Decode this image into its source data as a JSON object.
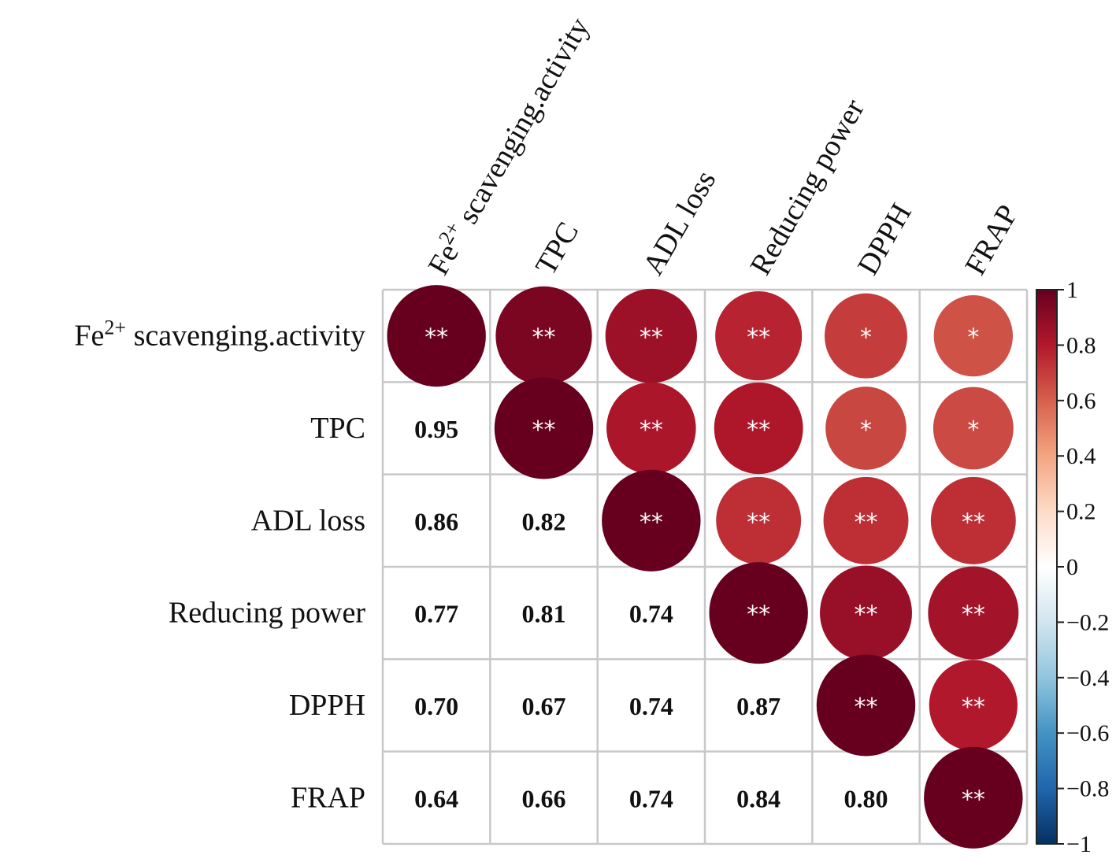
{
  "chart_data": {
    "type": "heatmap",
    "subtype": "correlation-matrix-circles",
    "variables": [
      {
        "base": "Fe",
        "sup": "2+",
        "rest": " scavenging.activity"
      },
      {
        "base": "TPC"
      },
      {
        "base": "ADL loss"
      },
      {
        "base": "Reducing power"
      },
      {
        "base": "DPPH"
      },
      {
        "base": "FRAP"
      }
    ],
    "correlation": [
      [
        1.0,
        0.95,
        0.86,
        0.77,
        0.7,
        0.64
      ],
      [
        0.95,
        1.0,
        0.82,
        0.81,
        0.67,
        0.66
      ],
      [
        0.86,
        0.82,
        1.0,
        0.74,
        0.74,
        0.74
      ],
      [
        0.77,
        0.81,
        0.74,
        1.0,
        0.87,
        0.84
      ],
      [
        0.7,
        0.67,
        0.74,
        0.87,
        1.0,
        0.8
      ],
      [
        0.64,
        0.66,
        0.74,
        0.84,
        0.8,
        1.0
      ]
    ],
    "value_labels": [
      [
        "",
        "",
        "",
        "",
        "",
        ""
      ],
      [
        "0.95",
        "",
        "",
        "",
        "",
        ""
      ],
      [
        "0.86",
        "0.82",
        "",
        "",
        "",
        ""
      ],
      [
        "0.77",
        "0.81",
        "0.74",
        "",
        "",
        ""
      ],
      [
        "0.70",
        "0.67",
        "0.74",
        "0.87",
        "",
        ""
      ],
      [
        "0.64",
        "0.66",
        "0.74",
        "0.84",
        "0.80",
        ""
      ]
    ],
    "significance": [
      [
        "**",
        "**",
        "**",
        "**",
        "*",
        "*"
      ],
      [
        "",
        "**",
        "**",
        "**",
        "*",
        "*"
      ],
      [
        "",
        "",
        "**",
        "**",
        "**",
        "**"
      ],
      [
        "",
        "",
        "",
        "**",
        "**",
        "**"
      ],
      [
        "",
        "",
        "",
        "",
        "**",
        "**"
      ],
      [
        "",
        "",
        "",
        "",
        "",
        "**"
      ]
    ],
    "upper_triangle": "circles",
    "lower_triangle": "numbers",
    "colorbar": {
      "range": [
        -1,
        1
      ],
      "ticks": [
        "1",
        "0.8",
        "0.6",
        "0.4",
        "0.2",
        "0",
        "−0.2",
        "−0.4",
        "−0.6",
        "−0.8",
        "−1"
      ],
      "colors": [
        "#67001F",
        "#B2182B",
        "#D6604D",
        "#F4A582",
        "#FDDBC7",
        "#FFFFFF",
        "#D1E5F0",
        "#92C5DE",
        "#4393C3",
        "#2166AC",
        "#053061"
      ],
      "position": "right"
    }
  }
}
